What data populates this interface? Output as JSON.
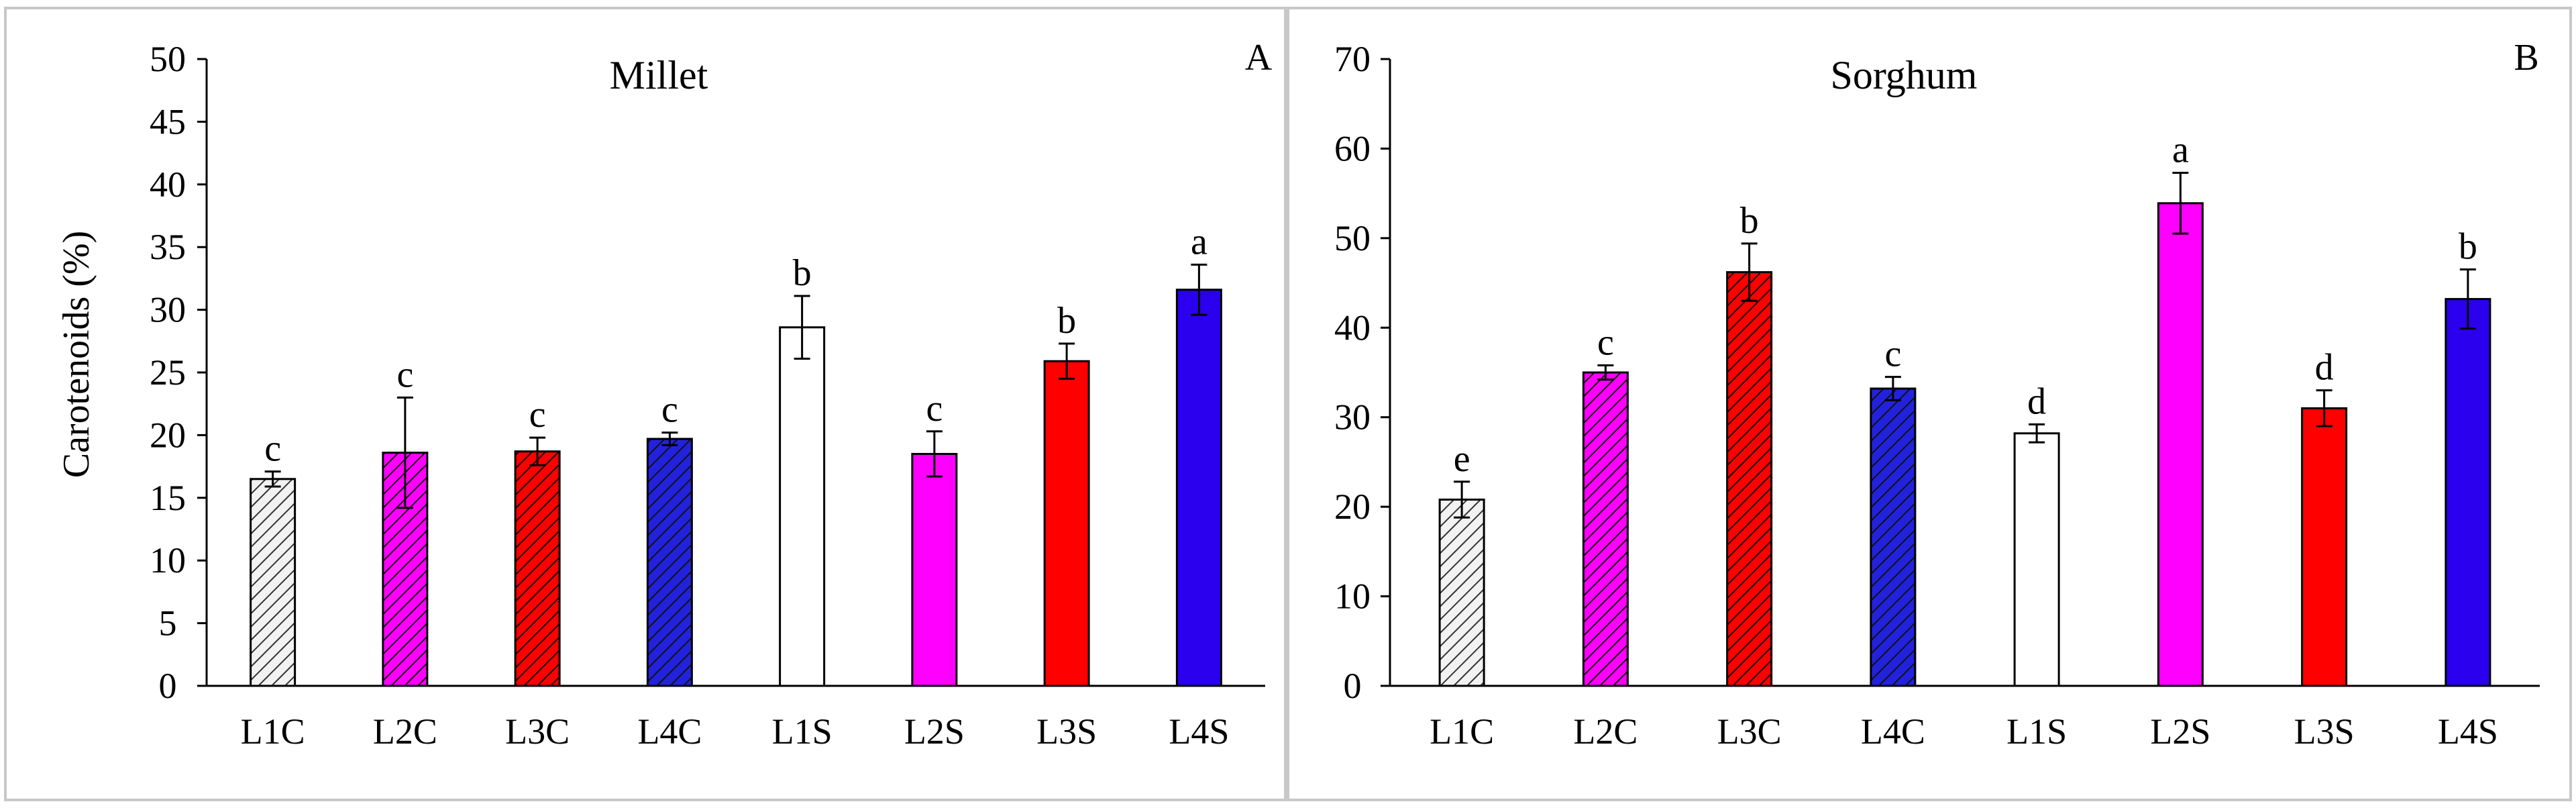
{
  "figure": {
    "y_axis_label": "Carotenoids  (%)"
  },
  "chart_data": [
    {
      "type": "bar",
      "title": "Millet",
      "panel_label": "A",
      "xlabel": "",
      "ylabel": "Carotenoids  (%)",
      "ylim": [
        0,
        50
      ],
      "yticks": [
        0,
        5,
        10,
        15,
        20,
        25,
        30,
        35,
        40,
        45,
        50
      ],
      "categories": [
        "L1C",
        "L2C",
        "L3C",
        "L4C",
        "L1S",
        "L2S",
        "L3S",
        "L4S"
      ],
      "values": [
        16.5,
        18.6,
        18.7,
        19.7,
        28.6,
        18.5,
        25.9,
        31.6
      ],
      "errors": [
        0.6,
        4.4,
        1.1,
        0.5,
        2.5,
        1.8,
        1.4,
        2.0
      ],
      "letters": [
        "c",
        "c",
        "c",
        "c",
        "b",
        "c",
        "b",
        "a"
      ],
      "fills": [
        "#f2f2f2",
        "#ff00ff",
        "#ff0000",
        "#2222dd",
        "#ffffff",
        "#ff00ff",
        "#ff0000",
        "#2a00ee"
      ],
      "hatched": [
        true,
        true,
        true,
        true,
        false,
        false,
        false,
        false
      ]
    },
    {
      "type": "bar",
      "title": "Sorghum",
      "panel_label": "B",
      "xlabel": "",
      "ylabel": "",
      "ylim": [
        0,
        70
      ],
      "yticks": [
        0,
        10,
        20,
        30,
        40,
        50,
        60,
        70
      ],
      "categories": [
        "L1C",
        "L2C",
        "L3C",
        "L4C",
        "L1S",
        "L2S",
        "L3S",
        "L4S"
      ],
      "values": [
        20.8,
        35.0,
        46.2,
        33.2,
        28.2,
        53.9,
        31.0,
        43.2
      ],
      "errors": [
        2.0,
        0.8,
        3.2,
        1.3,
        1.0,
        3.4,
        2.0,
        3.3
      ],
      "letters": [
        "e",
        "c",
        "b",
        "c",
        "d",
        "a",
        "d",
        "b"
      ],
      "fills": [
        "#f2f2f2",
        "#ff00ff",
        "#ff0000",
        "#2222dd",
        "#ffffff",
        "#ff00ff",
        "#ff0000",
        "#2a00ee"
      ],
      "hatched": [
        true,
        true,
        true,
        true,
        false,
        false,
        false,
        false
      ]
    }
  ]
}
